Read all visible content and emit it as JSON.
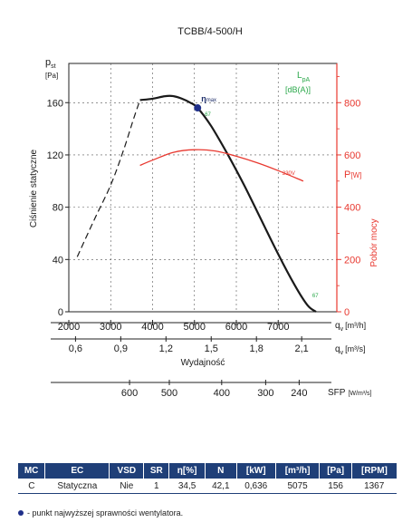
{
  "chart_data": {
    "type": "line",
    "title": "TCBB/4-500/H",
    "y_axis": {
      "symbol": "p",
      "subscript": "st",
      "unit": "[Pa]",
      "label": "Ciśnienie statyczne",
      "ticks": [
        0,
        40,
        80,
        120,
        160
      ],
      "range": [
        0,
        190
      ]
    },
    "x_axis": {
      "unit": "[m³/h]",
      "label": "Wydajność",
      "range": [
        2000,
        8400
      ],
      "ticks": [
        2000,
        3000,
        4000,
        5000,
        6000,
        7000
      ],
      "symbol": "q",
      "subscript": "v"
    },
    "x_axis_2": {
      "unit": "[m³/s]",
      "ticks": [
        "0,6",
        "0,9",
        "1,2",
        "1,5",
        "1,8",
        "2,1"
      ],
      "tick_values": [
        2160,
        3240,
        4320,
        5400,
        6480,
        7560
      ],
      "symbol": "q",
      "subscript": "v"
    },
    "sfp_axis": {
      "label": "SFP",
      "unit": "[W/m³/s]",
      "ticks": [
        "600",
        "500",
        "400",
        "300",
        "240"
      ],
      "tick_values": [
        3450,
        4400,
        5650,
        6700,
        7500
      ]
    },
    "y_axis_right": {
      "symbol": "P",
      "unit": "[W]",
      "label": "Pobór mocy",
      "ticks": [
        0,
        200,
        400,
        600,
        800
      ],
      "range": [
        0,
        950
      ]
    },
    "sound_label": {
      "symbol": "L",
      "subscript": "pA",
      "unit": "[dB(A)]"
    },
    "series": [
      {
        "type": "pressure-dashed",
        "x": [
          2200,
          2600,
          3000,
          3300,
          3550,
          3700
        ],
        "y": [
          42,
          70,
          97,
          123,
          148,
          162
        ]
      },
      {
        "type": "pressure",
        "x": [
          3700,
          4000,
          4300,
          4500,
          4700,
          4900,
          5075,
          5400,
          5800,
          6200,
          6600,
          7000,
          7400,
          7700,
          7900
        ],
        "y": [
          162,
          163,
          165,
          165,
          163,
          160,
          156,
          142,
          120,
          96,
          70,
          44,
          20,
          5,
          0
        ]
      },
      {
        "name": "230V",
        "type": "power",
        "x": [
          3700,
          4000,
          4500,
          5000,
          5500,
          6000,
          6500,
          7000,
          7600
        ],
        "y": [
          560,
          580,
          610,
          620,
          615,
          595,
          570,
          540,
          500
        ]
      }
    ],
    "efficiency_point": {
      "label": "η",
      "sub": "max",
      "x": 5075,
      "y": 156,
      "sound": "67"
    },
    "end_point_sound": {
      "x": 7900,
      "label": "67"
    }
  },
  "table": {
    "headers": [
      "MC",
      "EC",
      "VSD",
      "SR",
      "η[%]",
      "N",
      "[kW]",
      "[m³/h]",
      "[Pa]",
      "[RPM]"
    ],
    "row": [
      "C",
      "Statyczna",
      "Nie",
      "1",
      "34,5",
      "42,1",
      "0,636",
      "5075",
      "156",
      "1367"
    ]
  },
  "footnote": "- punkt najwyższej sprawności wentylatora.",
  "colors": {
    "pressure": "#1a1a1a",
    "power": "#e8382f",
    "navy": "#1f3f78",
    "green": "#2aa84a"
  }
}
